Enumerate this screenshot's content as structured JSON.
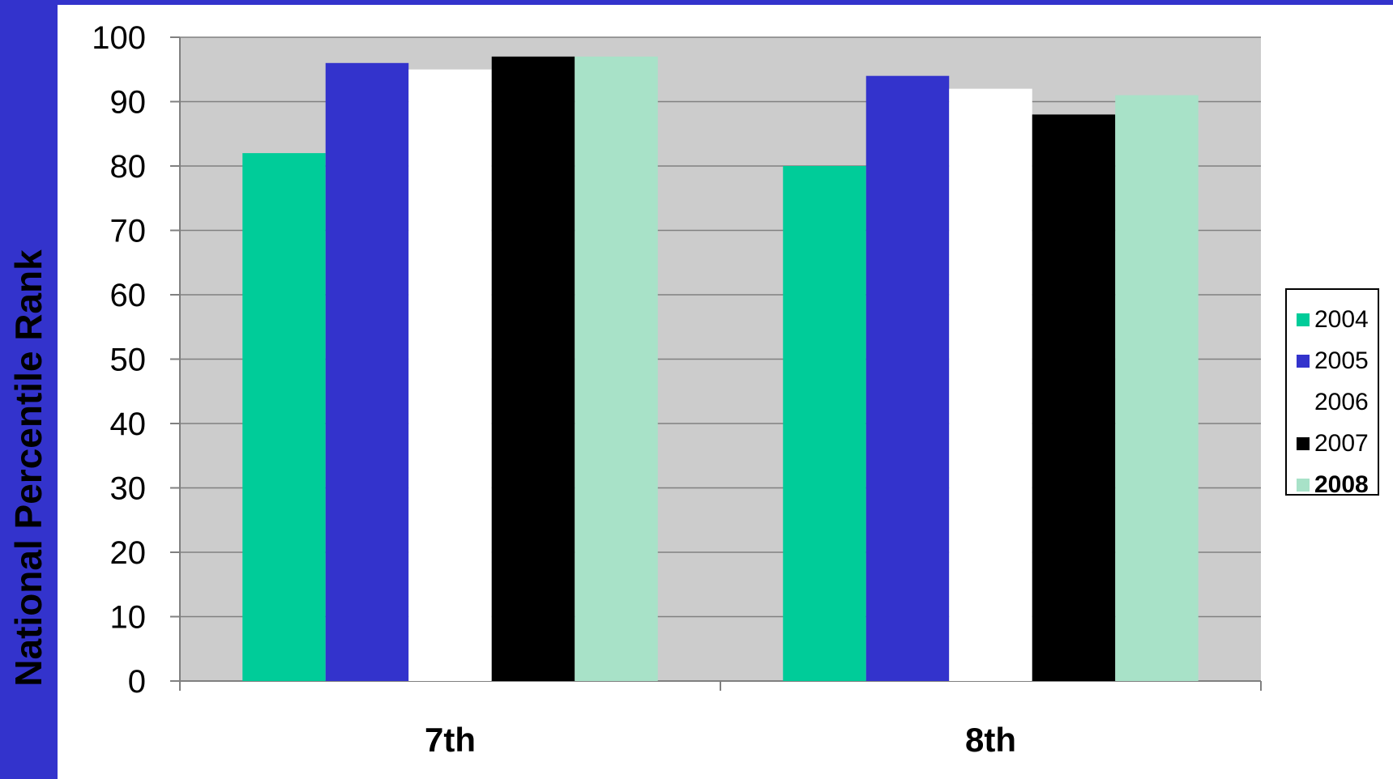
{
  "chart_data": {
    "type": "bar",
    "categories": [
      "7th",
      "8th"
    ],
    "series": [
      {
        "name": "2004",
        "values": [
          82,
          80
        ],
        "color": "#00cc99"
      },
      {
        "name": "2005",
        "values": [
          96,
          94
        ],
        "color": "#3333cc"
      },
      {
        "name": "2006",
        "values": [
          95,
          92
        ],
        "color": "#ffffff"
      },
      {
        "name": "2007",
        "values": [
          97,
          88
        ],
        "color": "#000000"
      },
      {
        "name": "2008",
        "values": [
          97,
          91
        ],
        "color": "#a8e2c8"
      }
    ],
    "ylabel": "National Percentile Rank",
    "xlabel": "",
    "ylim": [
      0,
      100
    ],
    "yticks": [
      0,
      10,
      20,
      30,
      40,
      50,
      60,
      70,
      80,
      90,
      100
    ],
    "grid": true,
    "legend_position": "right",
    "legend_bold_entry": "2008",
    "plot_background": "#cccccc",
    "slide_background": "#3333cc"
  }
}
